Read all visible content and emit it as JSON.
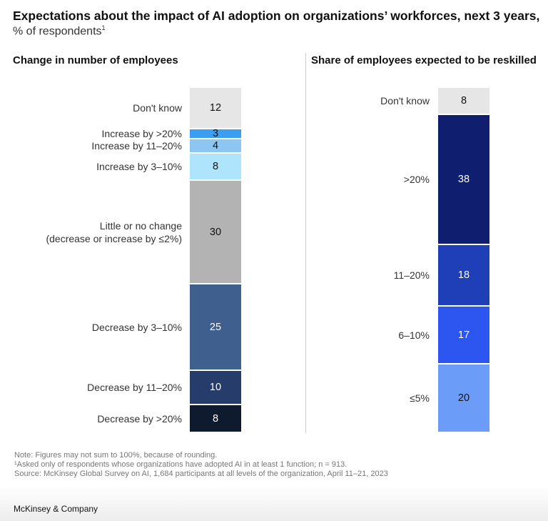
{
  "title": "Expectations about the impact of AI adoption on organizations’ workforces, next 3 years,",
  "subtitle": "% of respondents",
  "subtitle_footnote": "1",
  "chart_data": [
    {
      "type": "bar",
      "stacked": true,
      "title": "Change in number of employees",
      "categories": [
        "Don't know",
        "Increase by >20%",
        "Increase by 11–20%",
        "Increase by 3–10%",
        "Little or no change\n(decrease or increase by ≤2%)",
        "Decrease by 3–10%",
        "Decrease by 11–20%",
        "Decrease by >20%"
      ],
      "values": [
        12,
        3,
        4,
        8,
        30,
        25,
        10,
        8
      ],
      "colors": [
        "#e6e6e6",
        "#3c9ef0",
        "#8cc6f2",
        "#aee4fc",
        "#b3b3b3",
        "#3f5f8f",
        "#263d6b",
        "#0e1a2e"
      ],
      "text_colors": [
        "#111",
        "#111",
        "#111",
        "#111",
        "#111",
        "#fff",
        "#fff",
        "#fff"
      ]
    },
    {
      "type": "bar",
      "stacked": true,
      "title": "Share of employees expected to be reskilled",
      "categories": [
        "Don't know",
        ">20%",
        "11–20%",
        "6–10%",
        "≤5%"
      ],
      "values": [
        8,
        38,
        18,
        17,
        20
      ],
      "colors": [
        "#e6e6e6",
        "#0f1e6e",
        "#1f3fb8",
        "#2d55f0",
        "#6b9cf7"
      ],
      "text_colors": [
        "#111",
        "#fff",
        "#fff",
        "#fff",
        "#111"
      ]
    }
  ],
  "notes": [
    "Note: Figures may not sum to 100%, because of rounding.",
    "¹Asked only of respondents whose organizations have adopted AI in at least 1 function; n = 913.",
    "Source: McKinsey Global Survey on AI, 1,684 participants at all levels of the organization, April 11–21, 2023"
  ],
  "brand": "McKinsey & Company"
}
